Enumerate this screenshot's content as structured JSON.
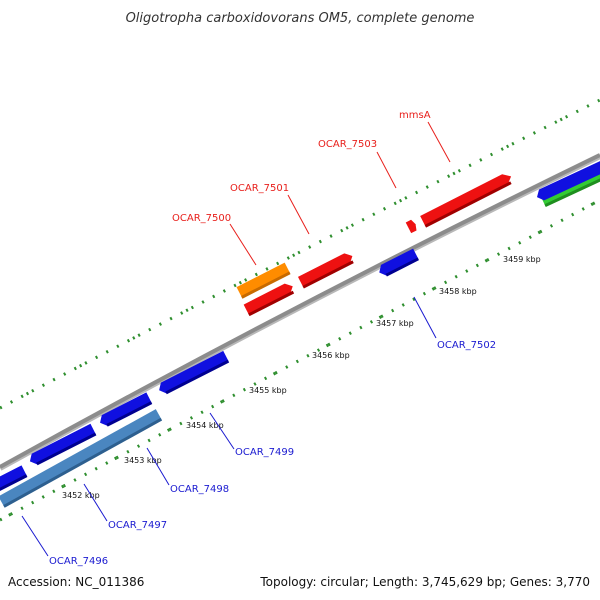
{
  "title": "Oligotropha carboxidovorans OM5, complete genome",
  "footer": {
    "accession": "Accession: NC_011386",
    "summary": "Topology: circular; Length: 3,745,629 bp; Genes: 3,770"
  },
  "colors": {
    "backbone": "#8c8c8c",
    "tick": "#2f8f2f",
    "forward_gene": "#ee1111",
    "reverse_gene": "#1010e0",
    "rna_gene": "#ff8c00",
    "steelblue_feature": "#4a86c0",
    "green_feature": "#33cc33",
    "label_forward": "#e8201c",
    "label_reverse": "#1a1ad0"
  },
  "kbp_labels": [
    "3452 kbp",
    "3453 kbp",
    "3454 kbp",
    "3455 kbp",
    "3456 kbp",
    "3457 kbp",
    "3458 kbp",
    "3459 kbp"
  ],
  "labels": {
    "forward": [
      "OCAR_7500",
      "OCAR_7501",
      "OCAR_7503",
      "mmsA"
    ],
    "reverse": [
      "OCAR_7496",
      "OCAR_7497",
      "OCAR_7498",
      "OCAR_7499",
      "OCAR_7502"
    ]
  }
}
